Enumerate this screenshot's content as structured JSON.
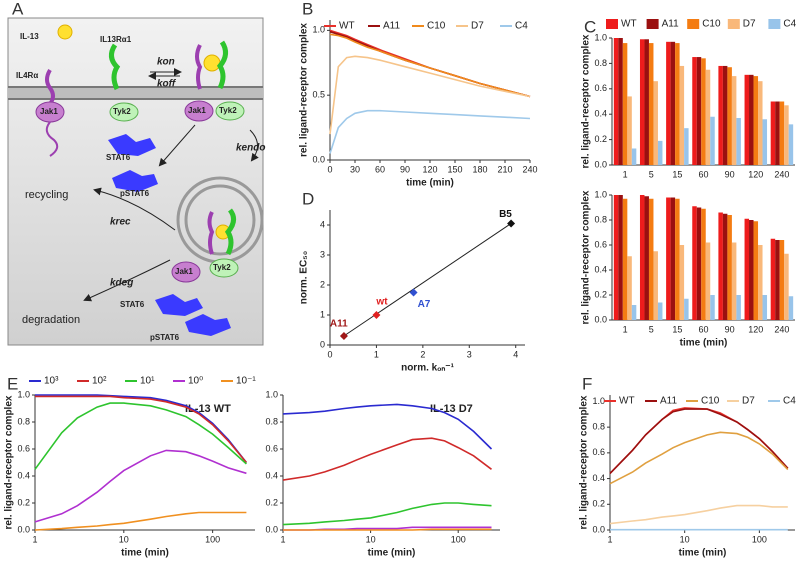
{
  "diagram": {
    "label": "A",
    "labels": [
      "IL-13",
      "IL13Rα1",
      "IL4Rα",
      "Jak1",
      "Tyk2",
      "kon",
      "koff",
      "Jak1",
      "Tyk2",
      "kendo",
      "STAT6",
      "pSTAT6",
      "recycling",
      "krec",
      "Jak1",
      "Tyk2",
      "kdeg",
      "degradation",
      "STAT6",
      "pSTAT6"
    ]
  },
  "chart_data": [
    {
      "type": "line",
      "label": "B",
      "xlabel": "time (min)",
      "ylabel": "rel. ligand-receptor complex",
      "x": [
        0,
        10,
        20,
        30,
        45,
        60,
        90,
        120,
        150,
        180,
        210,
        240
      ],
      "xlim": [
        0,
        240
      ],
      "xticks": [
        0,
        30,
        60,
        90,
        120,
        150,
        180,
        210,
        240
      ],
      "ylim": [
        0,
        1.08
      ],
      "yticks": [
        {
          "value": 0,
          "label": "0.0"
        },
        {
          "value": 0.5,
          "label": "0.5"
        },
        {
          "value": 1,
          "label": "1.0"
        }
      ],
      "legend": "top",
      "series": [
        {
          "name": "WT",
          "color": "#e8302a",
          "values": [
            1.0,
            0.98,
            0.96,
            0.93,
            0.89,
            0.85,
            0.78,
            0.71,
            0.65,
            0.59,
            0.54,
            0.49
          ]
        },
        {
          "name": "A11",
          "color": "#9b1010",
          "values": [
            0.99,
            0.97,
            0.95,
            0.92,
            0.88,
            0.84,
            0.77,
            0.71,
            0.65,
            0.59,
            0.54,
            0.49
          ]
        },
        {
          "name": "C10",
          "color": "#f08a1c",
          "values": [
            0.97,
            0.96,
            0.94,
            0.91,
            0.87,
            0.84,
            0.77,
            0.71,
            0.65,
            0.59,
            0.54,
            0.49
          ]
        },
        {
          "name": "D7",
          "color": "#f6c48a",
          "values": [
            0.2,
            0.72,
            0.79,
            0.8,
            0.79,
            0.77,
            0.72,
            0.67,
            0.62,
            0.57,
            0.53,
            0.49
          ]
        },
        {
          "name": "C4",
          "color": "#9fc9ea",
          "values": [
            0.05,
            0.25,
            0.32,
            0.36,
            0.38,
            0.38,
            0.37,
            0.36,
            0.35,
            0.34,
            0.33,
            0.32
          ]
        }
      ]
    },
    {
      "type": "bar",
      "label": "C",
      "ylabel": "rel. ligand-receptor complex",
      "categories": [
        "1",
        "5",
        "15",
        "60",
        "90",
        "120",
        "240"
      ],
      "ylim": [
        0,
        1.0
      ],
      "yticks": [
        {
          "value": 0,
          "label": "0.0"
        },
        {
          "value": 0.2,
          "label": "0.2"
        },
        {
          "value": 0.4,
          "label": "0.4"
        },
        {
          "value": 0.6,
          "label": "0.6"
        },
        {
          "value": 0.8,
          "label": "0.8"
        },
        {
          "value": 1,
          "label": "1.0"
        }
      ],
      "legend": "above",
      "series": [
        {
          "name": "WT",
          "color": "#ee1c1c",
          "values": [
            1.0,
            0.99,
            0.97,
            0.85,
            0.78,
            0.71,
            0.5
          ]
        },
        {
          "name": "A11",
          "color": "#9b1010",
          "values": [
            1.0,
            0.99,
            0.97,
            0.85,
            0.78,
            0.71,
            0.5
          ]
        },
        {
          "name": "C10",
          "color": "#f47c12",
          "values": [
            0.96,
            0.96,
            0.96,
            0.84,
            0.77,
            0.7,
            0.5
          ]
        },
        {
          "name": "D7",
          "color": "#f9b87a",
          "values": [
            0.54,
            0.66,
            0.78,
            0.75,
            0.7,
            0.66,
            0.47
          ]
        },
        {
          "name": "C4",
          "color": "#98c4ea",
          "values": [
            0.13,
            0.19,
            0.29,
            0.38,
            0.37,
            0.36,
            0.32
          ]
        }
      ]
    },
    {
      "type": "bar",
      "xlabel": "time (min)",
      "ylabel": "rel. ligand-receptor complex",
      "categories": [
        "1",
        "5",
        "15",
        "60",
        "90",
        "120",
        "240"
      ],
      "ylim": [
        0,
        1.0
      ],
      "yticks": [
        {
          "value": 0,
          "label": "0.0"
        },
        {
          "value": 0.2,
          "label": "0.2"
        },
        {
          "value": 0.4,
          "label": "0.4"
        },
        {
          "value": 0.6,
          "label": "0.6"
        },
        {
          "value": 0.8,
          "label": "0.8"
        },
        {
          "value": 1,
          "label": "1.0"
        }
      ],
      "series": [
        {
          "color": "#ee1c1c",
          "values": [
            1.0,
            1.0,
            0.98,
            0.91,
            0.86,
            0.81,
            0.65
          ]
        },
        {
          "color": "#9b1010",
          "values": [
            1.0,
            0.99,
            0.98,
            0.9,
            0.85,
            0.8,
            0.64
          ]
        },
        {
          "color": "#f47c12",
          "values": [
            0.97,
            0.97,
            0.97,
            0.89,
            0.84,
            0.79,
            0.64
          ]
        },
        {
          "color": "#f9b87a",
          "values": [
            0.51,
            0.55,
            0.6,
            0.62,
            0.62,
            0.6,
            0.53
          ]
        },
        {
          "color": "#98c4ea",
          "values": [
            0.12,
            0.14,
            0.17,
            0.2,
            0.2,
            0.2,
            0.19
          ]
        }
      ]
    },
    {
      "type": "scatter",
      "label": "D",
      "xlabel": "norm. kₒₙ⁻¹",
      "ylabel": "norm. EC₅₀",
      "xlim": [
        0,
        4.2
      ],
      "xticks": [
        0,
        1,
        2,
        3,
        4
      ],
      "ylim": [
        0,
        4.5
      ],
      "yticks": [
        0,
        1,
        2,
        3,
        4
      ],
      "points": [
        "A11",
        "wt",
        "A7",
        "B5"
      ],
      "x": [
        0.3,
        1.0,
        1.8,
        3.9
      ],
      "values": [
        0.3,
        1.0,
        1.75,
        4.05
      ],
      "colors": [
        "#a01818",
        "#e02020",
        "#3050d0",
        "#111111"
      ],
      "fit_line": {
        "x": [
          0.25,
          3.9
        ],
        "y": [
          0.25,
          4.05
        ]
      }
    },
    {
      "type": "line",
      "label": "E",
      "xlog": true,
      "xlabel": "time (min)",
      "ylabel": "rel. ligand-receptor complex",
      "annotation": "IL-13  WT",
      "x": [
        1,
        2,
        3,
        5,
        7,
        10,
        20,
        30,
        50,
        70,
        100,
        150,
        240
      ],
      "xlim": [
        1,
        300
      ],
      "xticks": [
        1,
        10,
        100
      ],
      "ylim": [
        0,
        1.0
      ],
      "yticks": [
        {
          "value": 0,
          "label": "0.0"
        },
        {
          "value": 0.2,
          "label": "0.2"
        },
        {
          "value": 0.4,
          "label": "0.4"
        },
        {
          "value": 0.6,
          "label": "0.6"
        },
        {
          "value": 0.8,
          "label": "0.8"
        },
        {
          "value": 1,
          "label": "1.0"
        }
      ],
      "legend": "above",
      "series": [
        {
          "name": "10³",
          "color": "#2a2ad0",
          "values": [
            1,
            1,
            1,
            1,
            0.995,
            0.99,
            0.98,
            0.96,
            0.92,
            0.87,
            0.79,
            0.67,
            0.5
          ]
        },
        {
          "name": "10²",
          "color": "#d02a2a",
          "values": [
            0.99,
            0.99,
            0.99,
            0.99,
            0.99,
            0.98,
            0.97,
            0.95,
            0.91,
            0.86,
            0.78,
            0.66,
            0.5
          ]
        },
        {
          "name": "10¹",
          "color": "#2ec42e",
          "values": [
            0.45,
            0.72,
            0.83,
            0.91,
            0.94,
            0.94,
            0.92,
            0.89,
            0.84,
            0.78,
            0.71,
            0.61,
            0.49
          ]
        },
        {
          "name": "10⁰",
          "color": "#b030d0",
          "values": [
            0.06,
            0.12,
            0.18,
            0.28,
            0.36,
            0.44,
            0.55,
            0.59,
            0.58,
            0.55,
            0.51,
            0.46,
            0.42
          ]
        },
        {
          "name": "10⁻¹",
          "color": "#f09020",
          "values": [
            0.0,
            0.01,
            0.02,
            0.03,
            0.04,
            0.05,
            0.08,
            0.1,
            0.12,
            0.13,
            0.13,
            0.13,
            0.13
          ]
        }
      ]
    },
    {
      "type": "line",
      "xlog": true,
      "xlabel": "time (min)",
      "annotation": "IL-13  D7",
      "x": [
        1,
        2,
        3,
        5,
        7,
        10,
        20,
        30,
        50,
        70,
        100,
        150,
        240
      ],
      "xlim": [
        1,
        300
      ],
      "xticks": [
        1,
        10,
        100
      ],
      "ylim": [
        0,
        1.0
      ],
      "yticks": [
        {
          "value": 0,
          "label": "0.0"
        },
        {
          "value": 0.2,
          "label": "0.2"
        },
        {
          "value": 0.4,
          "label": "0.4"
        },
        {
          "value": 0.6,
          "label": "0.6"
        },
        {
          "value": 0.8,
          "label": "0.8"
        },
        {
          "value": 1,
          "label": "1.0"
        }
      ],
      "series": [
        {
          "color": "#2a2ad0",
          "values": [
            0.86,
            0.87,
            0.88,
            0.9,
            0.91,
            0.92,
            0.93,
            0.92,
            0.9,
            0.87,
            0.82,
            0.73,
            0.6
          ]
        },
        {
          "color": "#d02a2a",
          "values": [
            0.37,
            0.4,
            0.43,
            0.48,
            0.52,
            0.56,
            0.63,
            0.67,
            0.68,
            0.66,
            0.61,
            0.55,
            0.45
          ]
        },
        {
          "color": "#2ec42e",
          "values": [
            0.04,
            0.05,
            0.06,
            0.07,
            0.08,
            0.09,
            0.13,
            0.16,
            0.19,
            0.2,
            0.2,
            0.19,
            0.18
          ]
        },
        {
          "color": "#b030d0",
          "values": [
            0,
            0,
            0.005,
            0.005,
            0.01,
            0.01,
            0.01,
            0.02,
            0.02,
            0.02,
            0.02,
            0.02,
            0.02
          ]
        },
        {
          "color": "#f09020",
          "values": [
            0,
            0,
            0,
            0,
            0,
            0,
            0,
            0,
            0.005,
            0.005,
            0.005,
            0.005,
            0.005
          ]
        }
      ]
    },
    {
      "type": "line",
      "label": "F",
      "xlog": true,
      "xlabel": "time (min)",
      "ylabel": "rel. ligand-receptor complex",
      "x": [
        1,
        2,
        3,
        5,
        7,
        10,
        20,
        30,
        50,
        70,
        100,
        150,
        240
      ],
      "xlim": [
        1,
        300
      ],
      "xticks": [
        1,
        10,
        100
      ],
      "ylim": [
        0,
        1.05
      ],
      "yticks": [
        {
          "value": 0,
          "label": "0.0"
        },
        {
          "value": 0.2,
          "label": "0.2"
        },
        {
          "value": 0.4,
          "label": "0.4"
        },
        {
          "value": 0.6,
          "label": "0.6"
        },
        {
          "value": 0.8,
          "label": "0.8"
        },
        {
          "value": 1,
          "label": "1.0"
        }
      ],
      "legend": "top",
      "series": [
        {
          "name": "WT",
          "color": "#e8302a",
          "values": [
            0.44,
            0.62,
            0.74,
            0.86,
            0.93,
            0.95,
            0.94,
            0.91,
            0.84,
            0.78,
            0.71,
            0.61,
            0.48
          ]
        },
        {
          "name": "A11",
          "color": "#9b1010",
          "values": [
            0.44,
            0.62,
            0.74,
            0.86,
            0.92,
            0.94,
            0.94,
            0.9,
            0.84,
            0.78,
            0.71,
            0.61,
            0.48
          ]
        },
        {
          "name": "C10",
          "color": "#e0a040",
          "values": [
            0.36,
            0.45,
            0.52,
            0.59,
            0.64,
            0.68,
            0.74,
            0.76,
            0.75,
            0.72,
            0.67,
            0.59,
            0.47
          ]
        },
        {
          "name": "D7",
          "color": "#f6d0a0",
          "values": [
            0.05,
            0.07,
            0.08,
            0.1,
            0.11,
            0.12,
            0.15,
            0.17,
            0.19,
            0.19,
            0.19,
            0.18,
            0.18
          ]
        },
        {
          "name": "C4",
          "color": "#9fc9ea",
          "values": [
            0.002,
            0.002,
            0.002,
            0.002,
            0.002,
            0.002,
            0.002,
            0.002,
            0.002,
            0.002,
            0.002,
            0.002,
            0.002
          ]
        }
      ]
    }
  ]
}
